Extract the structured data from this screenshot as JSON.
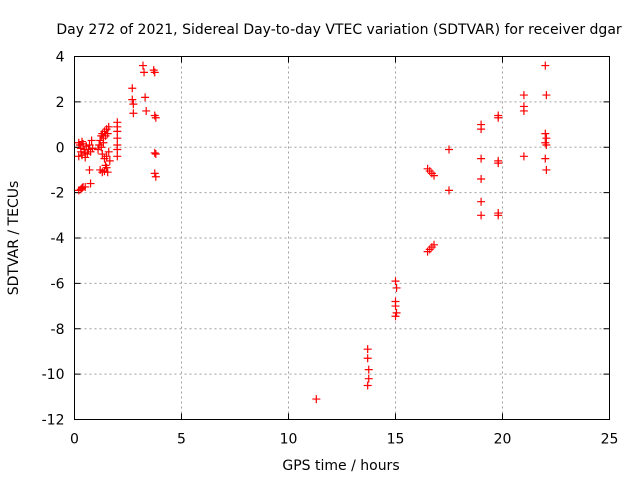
{
  "chart_data": {
    "type": "scatter",
    "title": "Day 272 of 2021, Sidereal Day-to-day VTEC variation (SDTVAR) for receiver dgar",
    "xlabel": "GPS time / hours",
    "ylabel": "SDTVAR / TECUs",
    "xlim": [
      0,
      25
    ],
    "ylim": [
      -12,
      4
    ],
    "xticks": [
      0,
      5,
      10,
      15,
      20,
      25
    ],
    "yticks": [
      -12,
      -10,
      -8,
      -6,
      -4,
      -2,
      0,
      2,
      4
    ],
    "grid": true,
    "marker": "+",
    "color": "#ff0000",
    "series": [
      {
        "name": "SDTVAR",
        "points": [
          [
            0.2,
            -1.9
          ],
          [
            0.3,
            -1.85
          ],
          [
            0.35,
            -1.8
          ],
          [
            0.4,
            -1.75
          ],
          [
            0.5,
            -1.75
          ],
          [
            0.2,
            0.2
          ],
          [
            0.25,
            0.1
          ],
          [
            0.3,
            -0.05
          ],
          [
            0.3,
            -0.2
          ],
          [
            0.35,
            -0.35
          ],
          [
            0.4,
            0.15
          ],
          [
            0.45,
            -0.1
          ],
          [
            0.5,
            -0.25
          ],
          [
            0.55,
            0.05
          ],
          [
            0.6,
            -0.3
          ],
          [
            0.65,
            -0.1
          ],
          [
            0.7,
            0.1
          ],
          [
            0.75,
            -0.2
          ],
          [
            0.8,
            0.3
          ],
          [
            0.85,
            -0.05
          ],
          [
            0.2,
            -0.4
          ],
          [
            0.35,
            0.25
          ],
          [
            0.5,
            -0.45
          ],
          [
            0.7,
            -1.0
          ],
          [
            0.75,
            -1.6
          ],
          [
            1.1,
            -0.1
          ],
          [
            1.15,
            0.1
          ],
          [
            1.2,
            0.3
          ],
          [
            1.25,
            0.5
          ],
          [
            1.25,
            0.0
          ],
          [
            1.3,
            0.6
          ],
          [
            1.3,
            -0.3
          ],
          [
            1.35,
            0.4
          ],
          [
            1.35,
            0.2
          ],
          [
            1.4,
            0.7
          ],
          [
            1.4,
            -0.5
          ],
          [
            1.45,
            0.5
          ],
          [
            1.5,
            0.8
          ],
          [
            1.5,
            -0.4
          ],
          [
            1.55,
            0.6
          ],
          [
            1.6,
            0.9
          ],
          [
            1.6,
            -0.2
          ],
          [
            1.65,
            -0.6
          ],
          [
            1.45,
            -0.8
          ],
          [
            1.2,
            -1.0
          ],
          [
            1.3,
            -1.1
          ],
          [
            1.4,
            -1.05
          ],
          [
            1.5,
            -0.9
          ],
          [
            1.55,
            -1.1
          ],
          [
            2.0,
            1.1
          ],
          [
            2.0,
            0.9
          ],
          [
            2.0,
            0.7
          ],
          [
            2.0,
            0.4
          ],
          [
            2.0,
            0.1
          ],
          [
            2.0,
            -0.1
          ],
          [
            2.0,
            -0.4
          ],
          [
            2.7,
            2.6
          ],
          [
            2.7,
            2.1
          ],
          [
            2.75,
            1.9
          ],
          [
            2.75,
            1.5
          ],
          [
            3.2,
            3.6
          ],
          [
            3.25,
            3.3
          ],
          [
            3.3,
            2.2
          ],
          [
            3.35,
            1.6
          ],
          [
            3.7,
            3.4
          ],
          [
            3.75,
            3.3
          ],
          [
            3.75,
            1.4
          ],
          [
            3.8,
            1.3
          ],
          [
            3.75,
            -0.25
          ],
          [
            3.8,
            -0.3
          ],
          [
            3.75,
            -1.15
          ],
          [
            3.8,
            -1.3
          ],
          [
            11.3,
            -11.1
          ],
          [
            13.7,
            -8.9
          ],
          [
            13.7,
            -9.3
          ],
          [
            13.75,
            -9.8
          ],
          [
            13.75,
            -10.2
          ],
          [
            13.7,
            -10.5
          ],
          [
            15.0,
            -5.9
          ],
          [
            15.05,
            -6.2
          ],
          [
            15.0,
            -6.8
          ],
          [
            15.0,
            -7.0
          ],
          [
            15.05,
            -7.3
          ],
          [
            15.0,
            -7.45
          ],
          [
            16.5,
            -0.95
          ],
          [
            16.6,
            -1.05
          ],
          [
            16.7,
            -1.15
          ],
          [
            16.8,
            -1.25
          ],
          [
            16.5,
            -4.6
          ],
          [
            16.6,
            -4.5
          ],
          [
            16.7,
            -4.4
          ],
          [
            16.8,
            -4.3
          ],
          [
            17.5,
            -0.1
          ],
          [
            17.5,
            -1.9
          ],
          [
            19.0,
            1.0
          ],
          [
            19.0,
            0.8
          ],
          [
            19.0,
            -0.5
          ],
          [
            19.0,
            -1.4
          ],
          [
            19.0,
            -2.4
          ],
          [
            19.0,
            -3.0
          ],
          [
            19.8,
            1.4
          ],
          [
            19.8,
            1.3
          ],
          [
            19.8,
            -0.6
          ],
          [
            19.8,
            -0.7
          ],
          [
            19.8,
            -2.9
          ],
          [
            19.8,
            -3.0
          ],
          [
            21.0,
            2.3
          ],
          [
            21.0,
            1.8
          ],
          [
            21.0,
            1.6
          ],
          [
            21.0,
            -0.4
          ],
          [
            22.0,
            3.6
          ],
          [
            22.05,
            2.3
          ],
          [
            22.0,
            0.6
          ],
          [
            22.05,
            0.4
          ],
          [
            22.0,
            0.2
          ],
          [
            22.05,
            0.1
          ],
          [
            22.0,
            -0.5
          ],
          [
            22.05,
            -1.0
          ]
        ]
      }
    ]
  }
}
